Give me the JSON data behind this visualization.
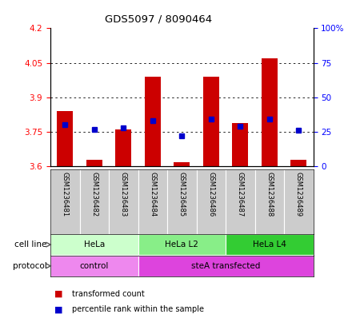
{
  "title": "GDS5097 / 8090464",
  "samples": [
    "GSM1236481",
    "GSM1236482",
    "GSM1236483",
    "GSM1236484",
    "GSM1236485",
    "GSM1236486",
    "GSM1236487",
    "GSM1236488",
    "GSM1236489"
  ],
  "transformed_counts": [
    3.84,
    3.63,
    3.76,
    3.99,
    3.62,
    3.99,
    3.79,
    4.07,
    3.63
  ],
  "percentile_ranks": [
    30,
    27,
    28,
    33,
    22,
    34,
    29,
    34,
    26
  ],
  "ylim_left": [
    3.6,
    4.2
  ],
  "ylim_right": [
    0,
    100
  ],
  "yticks_left": [
    3.6,
    3.75,
    3.9,
    4.05,
    4.2
  ],
  "yticks_right": [
    0,
    25,
    50,
    75,
    100
  ],
  "ytick_labels_right": [
    "0",
    "25",
    "50",
    "75",
    "100%"
  ],
  "grid_values": [
    3.75,
    3.9,
    4.05
  ],
  "bar_base": 3.6,
  "bar_color": "#cc0000",
  "dot_color": "#0000cc",
  "cell_line_groups": [
    {
      "label": "HeLa",
      "start": 0,
      "end": 3,
      "color": "#ccffcc"
    },
    {
      "label": "HeLa L2",
      "start": 3,
      "end": 6,
      "color": "#88ee88"
    },
    {
      "label": "HeLa L4",
      "start": 6,
      "end": 9,
      "color": "#33cc33"
    }
  ],
  "protocol_groups": [
    {
      "label": "control",
      "start": 0,
      "end": 3,
      "color": "#ee88ee"
    },
    {
      "label": "steA transfected",
      "start": 3,
      "end": 9,
      "color": "#dd44dd"
    }
  ],
  "cell_line_label": "cell line",
  "protocol_label": "protocol",
  "legend_red_label": "transformed count",
  "legend_blue_label": "percentile rank within the sample",
  "sample_box_color": "#cccccc",
  "plot_bg_color": "#ffffff"
}
